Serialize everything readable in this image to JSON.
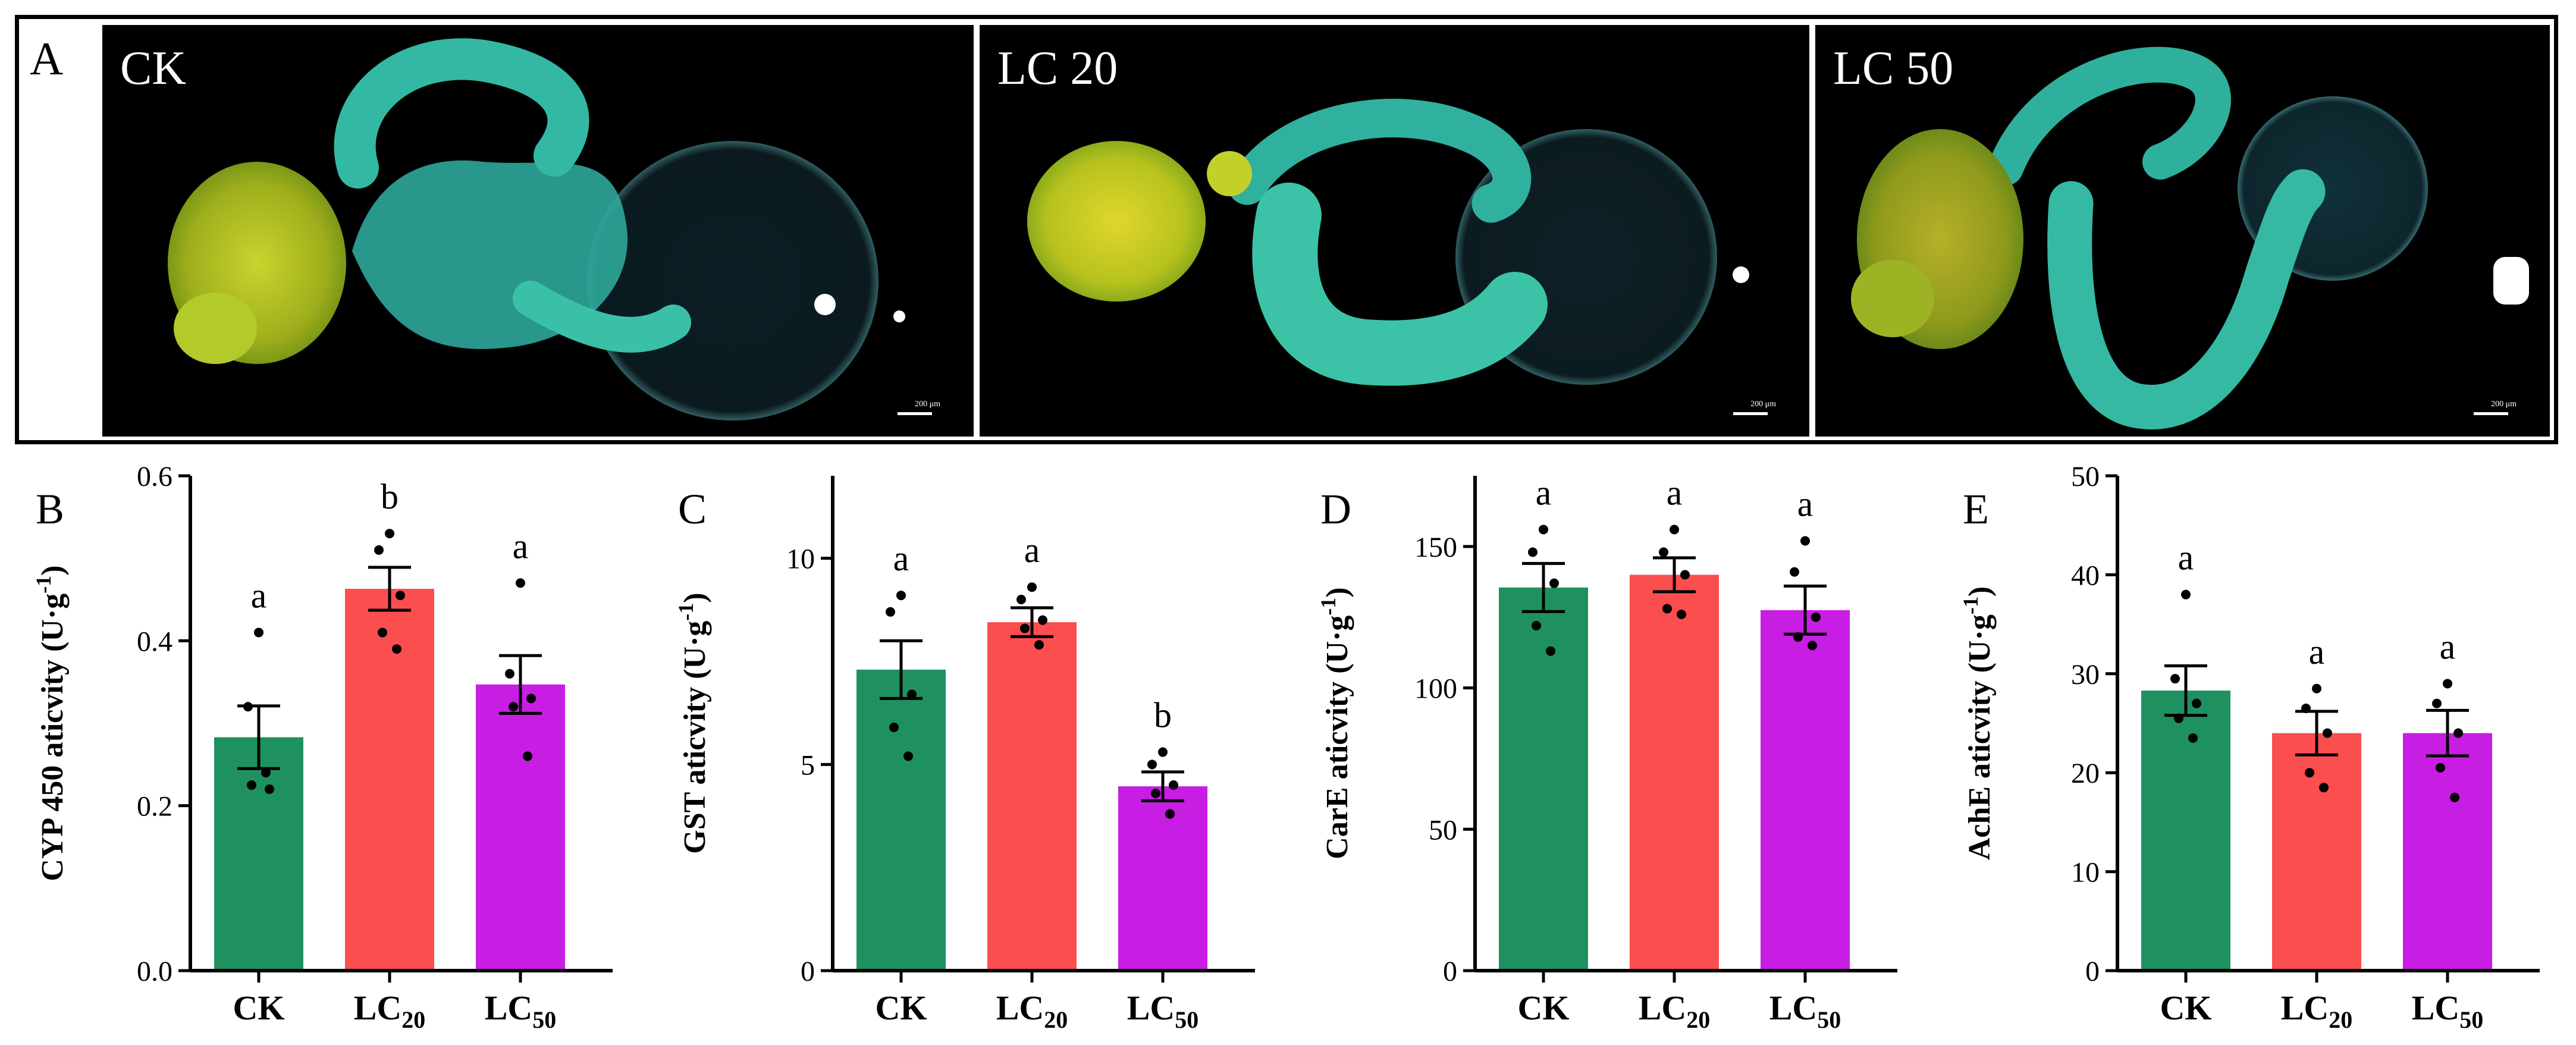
{
  "panel_a": {
    "letter": "A",
    "photos": [
      {
        "label": "CK",
        "scale_text": "200 μm"
      },
      {
        "label": "LC 20",
        "scale_text": "200 μm"
      },
      {
        "label": "LC 50",
        "scale_text": "200 μm"
      }
    ]
  },
  "colors": {
    "ck": "#1f9160",
    "lc20": "#fb4e4e",
    "lc50": "#c81de3"
  },
  "chart_data": [
    {
      "type": "bar",
      "letter": "B",
      "ylabel": "CYP 450 aticvity (U·g-1)",
      "ylabel_main": "CYP 450 aticvity (U·g",
      "ylabel_sup": "-1",
      "ylabel_end": ")",
      "categories": [
        "CK",
        "LC20",
        "LC50"
      ],
      "category_labels": [
        {
          "main": "CK",
          "sub": ""
        },
        {
          "main": "LC",
          "sub": "20"
        },
        {
          "main": "LC",
          "sub": "50"
        }
      ],
      "values": [
        0.283,
        0.463,
        0.347
      ],
      "errors": [
        0.038,
        0.026,
        0.035
      ],
      "points": [
        [
          0.41,
          0.32,
          0.22,
          0.225,
          0.24
        ],
        [
          0.53,
          0.51,
          0.455,
          0.41,
          0.39
        ],
        [
          0.47,
          0.36,
          0.33,
          0.32,
          0.26
        ]
      ],
      "letters": [
        "a",
        "b",
        "a"
      ],
      "ylim": [
        0,
        0.6
      ],
      "yticks": [
        0.0,
        0.2,
        0.4,
        0.6
      ],
      "ytick_labels": [
        "0.0",
        "0.2",
        "0.4",
        "0.6"
      ]
    },
    {
      "type": "bar",
      "letter": "C",
      "ylabel": "GST aticvity (U·g-1)",
      "ylabel_main": "GST aticvity (U·g",
      "ylabel_sup": "-1",
      "ylabel_end": ")",
      "categories": [
        "CK",
        "LC20",
        "LC50"
      ],
      "category_labels": [
        {
          "main": "CK",
          "sub": ""
        },
        {
          "main": "LC",
          "sub": "20"
        },
        {
          "main": "LC",
          "sub": "50"
        }
      ],
      "values": [
        7.3,
        8.45,
        4.47
      ],
      "errors": [
        0.7,
        0.35,
        0.35
      ],
      "points": [
        [
          9.1,
          8.7,
          6.7,
          5.9,
          5.2
        ],
        [
          9.3,
          9.0,
          8.5,
          8.3,
          7.9
        ],
        [
          5.3,
          5.0,
          4.5,
          4.3,
          3.8
        ]
      ],
      "letters": [
        "a",
        "a",
        "b"
      ],
      "ylim": [
        0,
        12
      ],
      "yticks": [
        0,
        5,
        10
      ],
      "ytick_labels": [
        "0",
        "5",
        "10"
      ]
    },
    {
      "type": "bar",
      "letter": "D",
      "ylabel": "CarE aticvity (U·g-1)",
      "ylabel_main": "CarE aticvity (U·g",
      "ylabel_sup": "-1",
      "ylabel_end": ")",
      "categories": [
        "CK",
        "LC20",
        "LC50"
      ],
      "category_labels": [
        {
          "main": "CK",
          "sub": ""
        },
        {
          "main": "LC",
          "sub": "20"
        },
        {
          "main": "LC",
          "sub": "50"
        }
      ],
      "values": [
        135.5,
        140,
        127.5
      ],
      "errors": [
        8.5,
        6,
        8.5
      ],
      "points": [
        [
          156,
          148,
          137,
          122,
          113
        ],
        [
          156,
          148,
          140,
          128,
          126
        ],
        [
          152,
          141,
          125,
          118,
          115
        ]
      ],
      "letters": [
        "a",
        "a",
        "a"
      ],
      "ylim": [
        0,
        175
      ],
      "yticks": [
        0,
        50,
        100,
        150
      ],
      "ytick_labels": [
        "0",
        "50",
        "100",
        "150"
      ]
    },
    {
      "type": "bar",
      "letter": "E",
      "ylabel": "AchE aticvity (U·g-1)",
      "ylabel_main": "AchE aticvity (U·g",
      "ylabel_sup": "-1",
      "ylabel_end": ")",
      "categories": [
        "CK",
        "LC20",
        "LC50"
      ],
      "category_labels": [
        {
          "main": "CK",
          "sub": ""
        },
        {
          "main": "LC",
          "sub": "20"
        },
        {
          "main": "LC",
          "sub": "50"
        }
      ],
      "values": [
        28.3,
        24,
        24
      ],
      "errors": [
        2.5,
        2.2,
        2.3
      ],
      "points": [
        [
          38,
          29.5,
          27,
          25.5,
          23.5
        ],
        [
          28.5,
          26.5,
          24,
          20,
          18.5
        ],
        [
          29,
          27,
          24,
          20.5,
          17.5
        ]
      ],
      "letters": [
        "a",
        "a",
        "a"
      ],
      "ylim": [
        0,
        50
      ],
      "yticks": [
        0,
        10,
        20,
        30,
        40,
        50
      ],
      "ytick_labels": [
        "0",
        "10",
        "20",
        "30",
        "40",
        "50"
      ]
    }
  ]
}
